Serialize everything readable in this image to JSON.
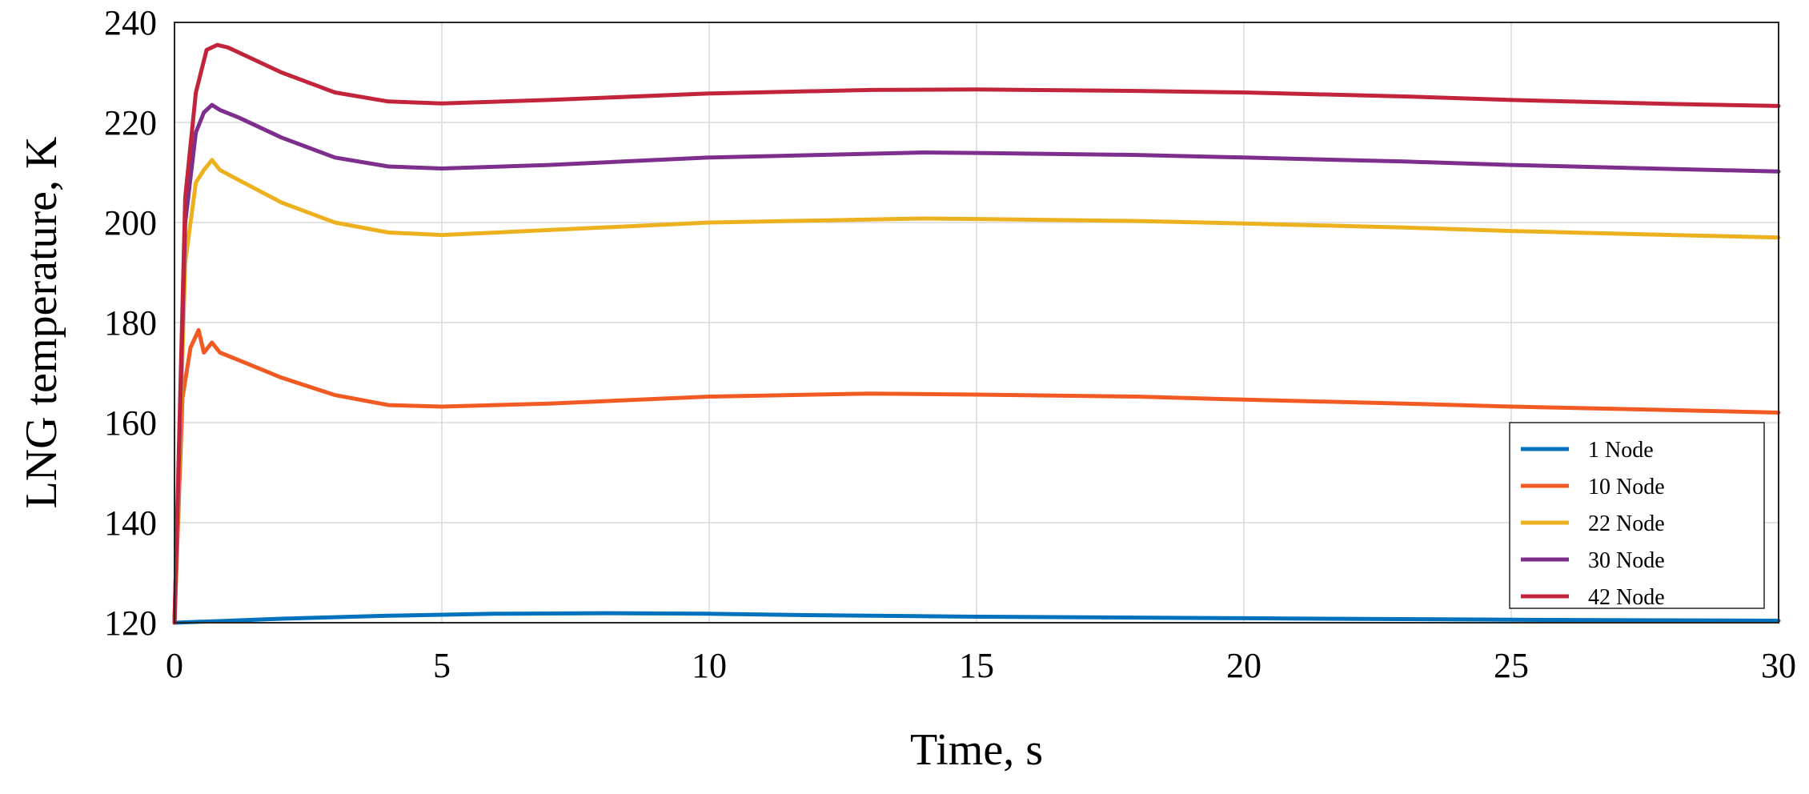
{
  "chart_data": {
    "type": "line",
    "title": "",
    "xlabel": "Time, s",
    "ylabel": "LNG temperature, K",
    "xlim": [
      0,
      30
    ],
    "ylim": [
      120,
      240
    ],
    "xticks": [
      "0",
      "5",
      "10",
      "15",
      "20",
      "25",
      "30"
    ],
    "yticks": [
      "120",
      "140",
      "160",
      "180",
      "200",
      "220",
      "240"
    ],
    "grid": true,
    "legend_position": "bottom-right",
    "series": [
      {
        "name": "1 Node",
        "color": "#0072BD",
        "x": [
          0,
          0.5,
          2,
          4,
          6,
          8,
          10,
          12,
          15,
          20,
          25,
          30
        ],
        "y": [
          120,
          120.2,
          120.8,
          121.4,
          121.8,
          121.9,
          121.8,
          121.5,
          121.2,
          120.9,
          120.6,
          120.4
        ]
      },
      {
        "name": "10 Node",
        "color": "#F15A22",
        "x": [
          0,
          0.15,
          0.3,
          0.45,
          0.55,
          0.7,
          0.85,
          1.2,
          2,
          3,
          4,
          5,
          7,
          10,
          13,
          15,
          18,
          20,
          23,
          25,
          28,
          30
        ],
        "y": [
          120,
          165,
          175,
          178.5,
          174,
          176,
          174,
          172.5,
          169,
          165.5,
          163.5,
          163.2,
          163.8,
          165.2,
          165.8,
          165.6,
          165.2,
          164.6,
          163.8,
          163.2,
          162.5,
          162
        ]
      },
      {
        "name": "22 Node",
        "color": "#EDB120",
        "x": [
          0,
          0.2,
          0.4,
          0.55,
          0.7,
          0.85,
          1.2,
          2,
          3,
          4,
          5,
          7,
          10,
          14,
          15,
          18,
          20,
          23,
          25,
          28,
          30
        ],
        "y": [
          120,
          192,
          208,
          210.5,
          212.5,
          210.5,
          208.5,
          204,
          200,
          198,
          197.5,
          198.5,
          200,
          200.8,
          200.7,
          200.3,
          199.8,
          199,
          198.3,
          197.5,
          197
        ]
      },
      {
        "name": "30 Node",
        "color": "#7E2F8E",
        "x": [
          0,
          0.2,
          0.4,
          0.55,
          0.7,
          0.85,
          1.2,
          2,
          3,
          4,
          5,
          7,
          10,
          14,
          15,
          18,
          20,
          23,
          25,
          28,
          30
        ],
        "y": [
          120,
          200,
          218,
          222,
          223.5,
          222.5,
          221,
          217,
          213,
          211.2,
          210.8,
          211.5,
          213,
          214,
          213.9,
          213.5,
          213,
          212.2,
          211.5,
          210.7,
          210.2
        ]
      },
      {
        "name": "42 Node",
        "color": "#C2243C",
        "x": [
          0,
          0.2,
          0.4,
          0.6,
          0.8,
          1.0,
          1.3,
          2,
          3,
          4,
          5,
          7,
          10,
          13,
          15,
          18,
          20,
          23,
          25,
          28,
          30
        ],
        "y": [
          120,
          205,
          226,
          234.5,
          235.5,
          235,
          233.5,
          230,
          226,
          224.2,
          223.8,
          224.5,
          225.8,
          226.5,
          226.6,
          226.3,
          226,
          225.2,
          224.5,
          223.7,
          223.3
        ]
      }
    ]
  }
}
